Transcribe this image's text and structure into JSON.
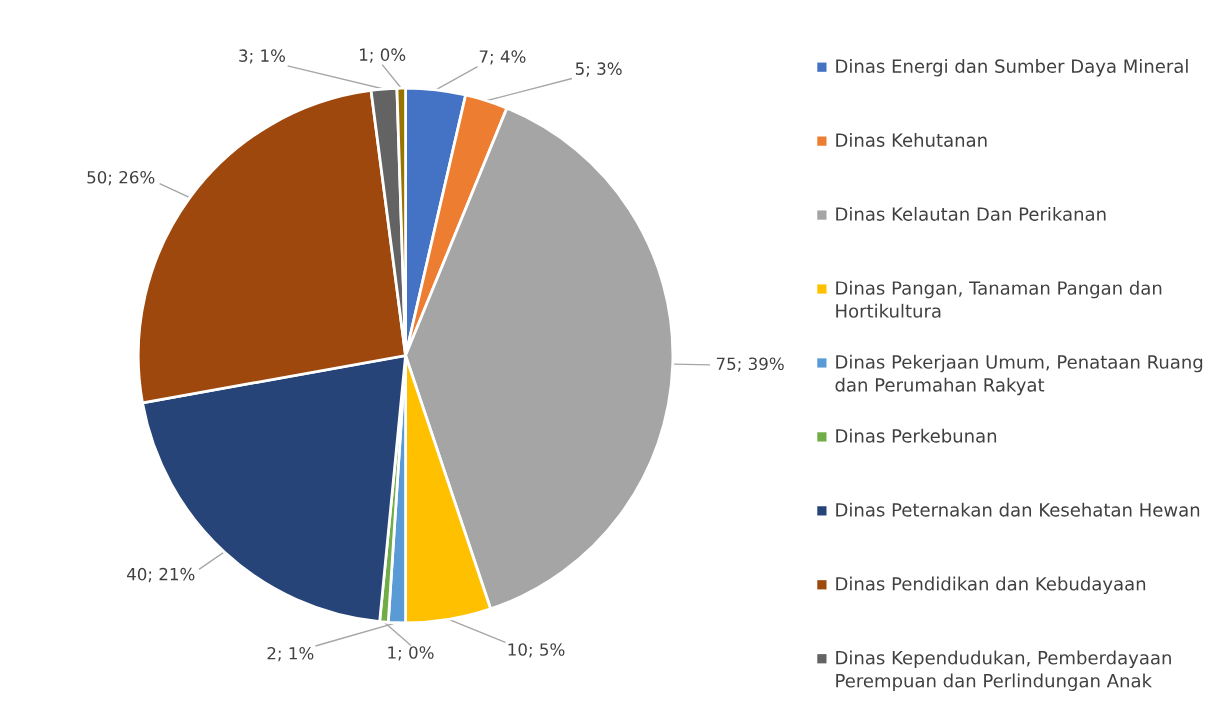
{
  "chart_data": {
    "type": "pie",
    "categories": [
      "Dinas Energi dan Sumber Daya Mineral",
      "Dinas Kehutanan",
      "Dinas Kelautan Dan Perikanan",
      "Dinas Pangan, Tanaman Pangan dan Hortikultura",
      "Dinas Pekerjaan Umum, Penataan Ruang dan Perumahan Rakyat",
      "Dinas Perkebunan",
      "Dinas Peternakan dan Kesehatan Hewan",
      "Dinas Pendidikan dan Kebudayaan",
      "Dinas Kependudukan, Pemberdayaan Perempuan dan Perlindungan Anak",
      null
    ],
    "values": [
      7,
      5,
      75,
      10,
      2,
      1,
      40,
      50,
      3,
      1
    ],
    "colors": [
      "#4472c4",
      "#ed7d31",
      "#a5a5a5",
      "#ffc000",
      "#5b9bd5",
      "#70ad47",
      "#264478",
      "#9e480e",
      "#636363",
      "#997300"
    ],
    "value_labels": [
      "7; 4%",
      "5; 3%",
      "75; 39%",
      "10; 5%",
      "2; 1%",
      "1; 0%",
      "40; 21%",
      "50; 26%",
      "3; 1%",
      "1; 0%"
    ],
    "legend": "right"
  }
}
